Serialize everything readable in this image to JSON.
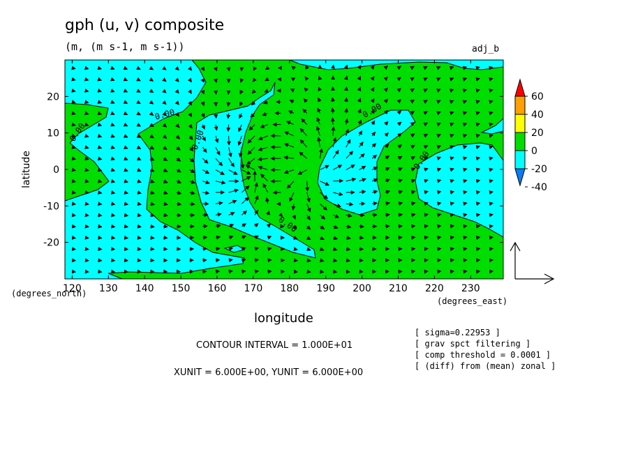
{
  "title": "gph (u, v) composite",
  "subtitle": "(m, (m s-1, m s-1))",
  "tag": "adj_b",
  "colors": {
    "pos": "#00dd00",
    "neg": "#00ffff",
    "cb": [
      "#0a7cf5",
      "#00ffff",
      "#00dd00",
      "#ffff00",
      "#ffa000",
      "#ff0000"
    ]
  },
  "chart_data": {
    "type": "heatmap",
    "title": "gph (u, v) composite",
    "subtitle": "(m, (m s-1, m s-1))",
    "xlabel": "longitude",
    "ylabel": "latitude",
    "xlim": [
      118,
      239
    ],
    "ylim": [
      -30,
      30
    ],
    "x_units": "(degrees_east)",
    "y_units": "(degrees_north)",
    "x_ticks": [
      120,
      130,
      140,
      150,
      160,
      170,
      180,
      190,
      200,
      210,
      220,
      230
    ],
    "y_ticks": [
      20,
      10,
      0,
      -10,
      -20
    ],
    "contour_label": "0.00",
    "colorbar": {
      "labels": [
        "60",
        "40",
        "20",
        "0",
        "-20",
        "-40"
      ]
    }
  },
  "info": {
    "contour_interval": "CONTOUR INTERVAL = 1.000E+01",
    "units": "XUNIT = 6.000E+00, YUNIT = 6.000E+00"
  },
  "notes": [
    "[ sigma=0.22953 ]",
    "[ grav spct filtering ]",
    "[ comp threshold = 0.0001 ]",
    "[ (diff) from (mean) zonal ]"
  ]
}
